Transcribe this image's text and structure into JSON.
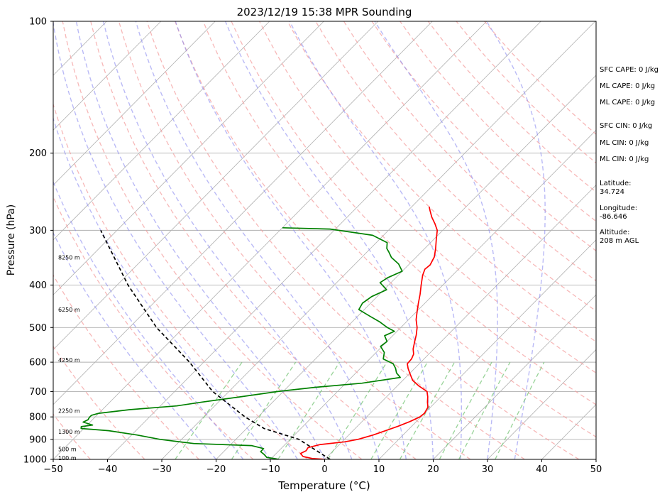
{
  "chart_data": {
    "type": "skew-t",
    "title": "2023/12/19 15:38 MPR Sounding",
    "xlabel": "Temperature (°C)",
    "ylabel": "Pressure (hPa)",
    "xlim": [
      -50,
      50
    ],
    "ylim": [
      1000,
      100
    ],
    "y_scale": "log",
    "x_ticks": [
      "−50",
      "−40",
      "−30",
      "−20",
      "−10",
      "0",
      "10",
      "20",
      "30",
      "40",
      "50"
    ],
    "x_tick_values": [
      -50,
      -40,
      -30,
      -20,
      -10,
      0,
      10,
      20,
      30,
      40,
      50
    ],
    "y_ticks": [
      "100",
      "200",
      "300",
      "400",
      "500",
      "600",
      "700",
      "800",
      "900",
      "1000"
    ],
    "y_tick_values": [
      100,
      200,
      300,
      400,
      500,
      600,
      700,
      800,
      900,
      1000
    ],
    "grid": "horizontal at pressure ticks",
    "background": {
      "isotherms_c": [
        -150,
        -140,
        -130,
        -120,
        -110,
        -100,
        -90,
        -80,
        -70,
        -60,
        -50,
        -40,
        -30,
        -20,
        -10,
        0,
        10,
        20,
        30,
        40,
        50
      ],
      "dry_adiabats_k": [
        230,
        240,
        250,
        260,
        270,
        280,
        290,
        300,
        310,
        320,
        330,
        340,
        350,
        360,
        370,
        380,
        390,
        400,
        410,
        420,
        430
      ],
      "moist_adiabats_start_c": [
        -20,
        -15,
        -10,
        -5,
        0,
        5,
        10,
        15,
        20,
        25,
        30,
        35
      ],
      "mixing_ratio_lines_gkg": [
        0.4,
        1,
        2,
        4,
        7,
        10,
        16,
        20,
        30
      ]
    },
    "series": [
      {
        "role": "temperature",
        "color": "#ff0000",
        "points": [
          [
            1000,
            0.0
          ],
          [
            995,
            -2.5
          ],
          [
            985,
            -4.5
          ],
          [
            970,
            -5.5
          ],
          [
            955,
            -5.0
          ],
          [
            940,
            -5.2
          ],
          [
            925,
            -3.5
          ],
          [
            912,
            0.5
          ],
          [
            900,
            2.5
          ],
          [
            880,
            4.5
          ],
          [
            860,
            6.0
          ],
          [
            840,
            7.5
          ],
          [
            820,
            8.8
          ],
          [
            800,
            9.8
          ],
          [
            785,
            10.0
          ],
          [
            760,
            9.5
          ],
          [
            740,
            8.5
          ],
          [
            720,
            7.6
          ],
          [
            700,
            6.5
          ],
          [
            680,
            4.0
          ],
          [
            660,
            1.8
          ],
          [
            640,
            0.3
          ],
          [
            620,
            -1.2
          ],
          [
            605,
            -2.2
          ],
          [
            590,
            -2.3
          ],
          [
            575,
            -2.8
          ],
          [
            560,
            -3.8
          ],
          [
            540,
            -4.8
          ],
          [
            520,
            -5.8
          ],
          [
            500,
            -7.0
          ],
          [
            480,
            -8.6
          ],
          [
            460,
            -9.9
          ],
          [
            440,
            -11.2
          ],
          [
            420,
            -12.5
          ],
          [
            400,
            -14.0
          ],
          [
            380,
            -15.5
          ],
          [
            368,
            -16.2
          ],
          [
            360,
            -16.0
          ],
          [
            345,
            -16.7
          ],
          [
            330,
            -18.0
          ],
          [
            315,
            -19.5
          ],
          [
            300,
            -21.0
          ],
          [
            290,
            -22.6
          ],
          [
            280,
            -24.4
          ],
          [
            270,
            -26.0
          ],
          [
            265,
            -26.8
          ]
        ]
      },
      {
        "role": "dewpoint",
        "color": "#008000",
        "points": [
          [
            1000,
            -8.5
          ],
          [
            995,
            -9.5
          ],
          [
            990,
            -11.0
          ],
          [
            975,
            -12.0
          ],
          [
            960,
            -13.2
          ],
          [
            945,
            -13.2
          ],
          [
            930,
            -16.0
          ],
          [
            920,
            -27.0
          ],
          [
            900,
            -34.0
          ],
          [
            880,
            -39.0
          ],
          [
            860,
            -45.0
          ],
          [
            850,
            -50.5
          ],
          [
            842,
            -50.8
          ],
          [
            835,
            -49.0
          ],
          [
            822,
            -51.3
          ],
          [
            812,
            -50.8
          ],
          [
            802,
            -51.0
          ],
          [
            793,
            -51.0
          ],
          [
            785,
            -50.0
          ],
          [
            770,
            -45.0
          ],
          [
            755,
            -37.0
          ],
          [
            740,
            -33.0
          ],
          [
            720,
            -27.0
          ],
          [
            700,
            -21.0
          ],
          [
            685,
            -15.0
          ],
          [
            670,
            -7.0
          ],
          [
            650,
            -1.0
          ],
          [
            635,
            -2.5
          ],
          [
            620,
            -3.5
          ],
          [
            605,
            -4.8
          ],
          [
            590,
            -7.5
          ],
          [
            570,
            -8.5
          ],
          [
            552,
            -10.3
          ],
          [
            538,
            -10.0
          ],
          [
            522,
            -11.5
          ],
          [
            510,
            -10.5
          ],
          [
            500,
            -12.5
          ],
          [
            485,
            -15.0
          ],
          [
            470,
            -18.0
          ],
          [
            455,
            -21.0
          ],
          [
            440,
            -21.5
          ],
          [
            425,
            -21.0
          ],
          [
            410,
            -19.5
          ],
          [
            395,
            -22.0
          ],
          [
            385,
            -21.5
          ],
          [
            372,
            -20.0
          ],
          [
            358,
            -22.0
          ],
          [
            346,
            -24.5
          ],
          [
            336,
            -26.0
          ],
          [
            330,
            -27.0
          ],
          [
            320,
            -28.0
          ],
          [
            308,
            -32.0
          ],
          [
            298,
            -41.0
          ],
          [
            296,
            -50.0
          ]
        ]
      },
      {
        "role": "parcel",
        "color": "#000000",
        "style": "dashed",
        "points": [
          [
            1000,
            1.0
          ],
          [
            900,
            -8.4
          ],
          [
            850,
            -16.8
          ],
          [
            800,
            -22.4
          ],
          [
            700,
            -33.0
          ],
          [
            600,
            -42.6
          ],
          [
            500,
            -55.0
          ],
          [
            400,
            -68.0
          ],
          [
            300,
            -83.0
          ]
        ]
      }
    ],
    "height_annotations": [
      {
        "text": "100 m",
        "p": 992
      },
      {
        "text": "500 m",
        "p": 948
      },
      {
        "text": "1300 m",
        "p": 865
      },
      {
        "text": "2250 m",
        "p": 774
      },
      {
        "text": "4250 m",
        "p": 593
      },
      {
        "text": "6250 m",
        "p": 455
      },
      {
        "text": "8250 m",
        "p": 346
      }
    ]
  },
  "side_panel": {
    "sfc_cape": "SFC CAPE: 0 J/kg",
    "ml_cape_1": "ML CAPE: 0 J/kg",
    "ml_cape_2": "ML CAPE: 0 J/kg",
    "sfc_cin": "SFC CIN: 0 J/kg",
    "ml_cin_1": "ML CIN: 0 J/kg",
    "ml_cin_2": "ML CIN: 0 J/kg",
    "latitude": "Latitude:\n34.724",
    "longitude": "Longitude:\n-86.646",
    "altitude": "Altitude:\n208 m AGL"
  },
  "colors": {
    "temperature": "#ff0000",
    "dewpoint": "#008000",
    "parcel": "#000000",
    "isotherm": "#b0b0b0",
    "dry_adiabat": "#f4a0a0",
    "moist_adiabat": "#8c8cf0",
    "mixing_ratio": "#7ec87e",
    "grid": "#b0b0b0"
  }
}
